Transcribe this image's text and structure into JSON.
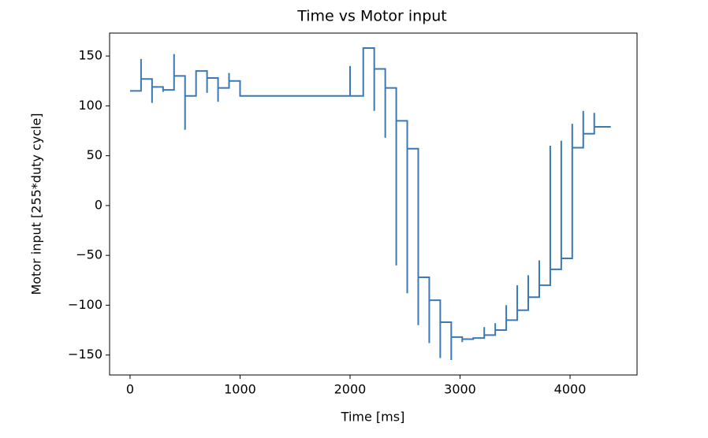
{
  "chart_data": {
    "type": "line",
    "title": "Time vs Motor input",
    "x_label": "Time [ms]",
    "y_label": "Motor input [255*duty cycle]",
    "xlim": [
      -186,
      4609
    ],
    "ylim": [
      -170,
      173
    ],
    "xticks": [
      0,
      1000,
      2000,
      3000,
      4000
    ],
    "yticks": [
      {
        "value": -150,
        "label": "−150"
      },
      {
        "value": -100,
        "label": "−100"
      },
      {
        "value": -50,
        "label": "−50"
      },
      0,
      50,
      100,
      150
    ],
    "series": [
      {
        "color": "#3b78b5",
        "x": [
          0,
          100,
          100,
          100,
          200,
          200,
          200,
          300,
          300,
          300,
          400,
          400,
          400,
          500,
          500,
          500,
          600,
          600,
          700,
          700,
          700,
          800,
          800,
          800,
          900,
          900,
          900,
          1000,
          1000,
          2000,
          2000,
          2000,
          2120,
          2120,
          2220,
          2220,
          2220,
          2320,
          2320,
          2320,
          2420,
          2420,
          2420,
          2520,
          2520,
          2520,
          2620,
          2620,
          2620,
          2720,
          2720,
          2720,
          2820,
          2820,
          2820,
          2920,
          2920,
          2920,
          3020,
          3020,
          3020,
          3120,
          3120,
          3220,
          3220,
          3220,
          3320,
          3320,
          3320,
          3420,
          3420,
          3420,
          3520,
          3520,
          3520,
          3620,
          3620,
          3620,
          3720,
          3720,
          3720,
          3820,
          3820,
          3820,
          3920,
          3920,
          3920,
          4020,
          4020,
          4020,
          4120,
          4120,
          4120,
          4220,
          4220,
          4220,
          4370
        ],
        "values": [
          115,
          115,
          147,
          127,
          127,
          103,
          119,
          119,
          114,
          116,
          116,
          152,
          130,
          130,
          76,
          110,
          110,
          135,
          135,
          113,
          128,
          128,
          104,
          118,
          118,
          133,
          125,
          125,
          110,
          110,
          140,
          110,
          110,
          158,
          158,
          95,
          137,
          137,
          68,
          118,
          118,
          -60,
          85,
          85,
          -88,
          57,
          57,
          -120,
          -72,
          -72,
          -138,
          -95,
          -95,
          -153,
          -117,
          -117,
          -155,
          -132,
          -132,
          -137,
          -134,
          -134,
          -133,
          -133,
          -122,
          -130,
          -130,
          -118,
          -125,
          -125,
          -100,
          -115,
          -115,
          -80,
          -105,
          -105,
          -70,
          -92,
          -92,
          -55,
          -80,
          -80,
          60,
          -64,
          -64,
          65,
          -53,
          -53,
          82,
          58,
          58,
          95,
          72,
          72,
          93,
          79,
          79
        ]
      }
    ]
  }
}
